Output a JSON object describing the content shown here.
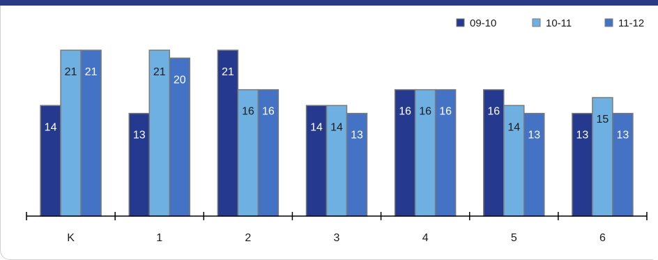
{
  "chart_data": {
    "type": "bar",
    "categories": [
      "K",
      "1",
      "2",
      "3",
      "4",
      "5",
      "6"
    ],
    "series": [
      {
        "name": "09-10",
        "values": [
          14,
          13,
          21,
          14,
          16,
          16,
          13
        ],
        "color": "#253a8e",
        "label_color": "#ffffff"
      },
      {
        "name": "10-11",
        "values": [
          21,
          21,
          16,
          14,
          16,
          14,
          15
        ],
        "color": "#6fb0e2",
        "label_color": "#1a1a1a"
      },
      {
        "name": "11-12",
        "values": [
          21,
          20,
          16,
          13,
          16,
          13,
          13
        ],
        "color": "#4472c4",
        "label_color": "#ffffff"
      }
    ],
    "title": "",
    "xlabel": "",
    "ylabel": "",
    "ylim": [
      0,
      21
    ],
    "grid": false,
    "legend": "top-right",
    "data_labels": true
  }
}
